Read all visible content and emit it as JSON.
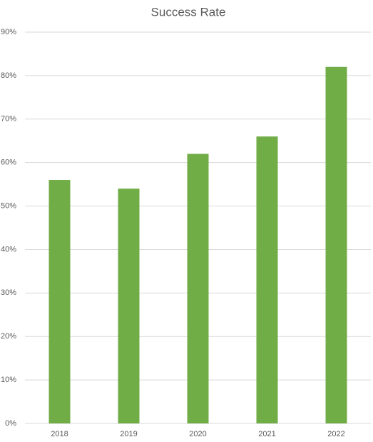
{
  "chart_data": {
    "type": "bar",
    "title": "Success Rate",
    "categories": [
      "2018",
      "2019",
      "2020",
      "2021",
      "2022"
    ],
    "values": [
      56,
      54,
      62,
      66,
      82
    ],
    "color": "#70ad47",
    "ylim": [
      0,
      90
    ],
    "yticks": [
      {
        "value": 0,
        "label": "0%"
      },
      {
        "value": 10,
        "label": "10%"
      },
      {
        "value": 20,
        "label": "20%"
      },
      {
        "value": 30,
        "label": "30%"
      },
      {
        "value": 40,
        "label": "40%"
      },
      {
        "value": 50,
        "label": "50%"
      },
      {
        "value": 60,
        "label": "60%"
      },
      {
        "value": 70,
        "label": "70%"
      },
      {
        "value": 80,
        "label": "80%"
      },
      {
        "value": 90,
        "label": "90%"
      }
    ],
    "grid": true
  }
}
